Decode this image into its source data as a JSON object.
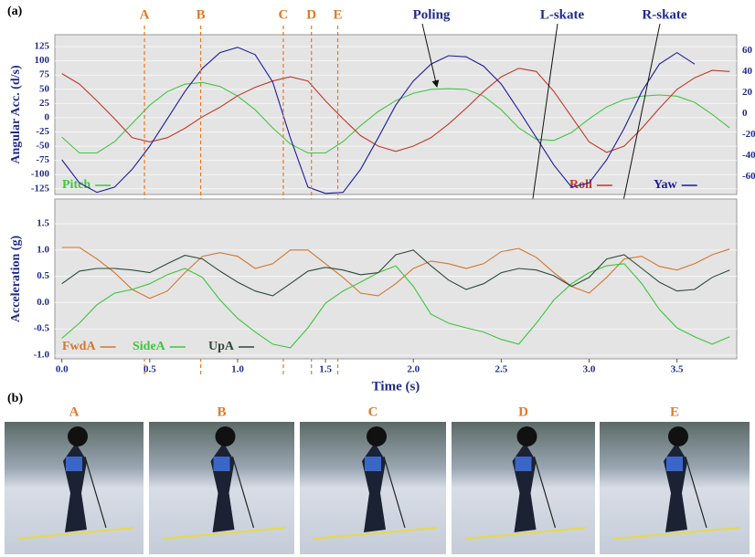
{
  "figure_label": "(a)",
  "chart_data": [
    {
      "type": "line",
      "ylabel": "Angular Acc. (d/s)",
      "xlim": [
        -0.04,
        3.84
      ],
      "ylim": [
        -135,
        146
      ],
      "yticks": [
        125,
        100,
        75,
        50,
        25,
        0,
        -25,
        -50,
        -75,
        -100,
        -125
      ],
      "y2lim": [
        -77,
        75
      ],
      "y2ticks": [
        60,
        40,
        20,
        0,
        -20,
        -40,
        -60
      ],
      "grid": true,
      "x": [
        0,
        0.1,
        0.2,
        0.3,
        0.4,
        0.5,
        0.6,
        0.7,
        0.8,
        0.9,
        1,
        1.1,
        1.2,
        1.3,
        1.4,
        1.5,
        1.6,
        1.7,
        1.8,
        1.9,
        2,
        2.1,
        2.2,
        2.3,
        2.4,
        2.5,
        2.6,
        2.7,
        2.8,
        2.9,
        3,
        3.1,
        3.2,
        3.3,
        3.4,
        3.5,
        3.6,
        3.7,
        3.8
      ],
      "series": [
        {
          "name": "Pitch",
          "color": "#45c445",
          "values": [
            -34,
            -62,
            -62,
            -42,
            -10,
            22,
            46,
            59,
            62,
            55,
            38,
            14,
            -18,
            -46,
            -62,
            -62,
            -42,
            -14,
            11,
            30,
            43,
            50,
            51,
            50,
            38,
            14,
            -18,
            -38,
            -40,
            -26,
            -2,
            19,
            32,
            38,
            40,
            38,
            27,
            6,
            -18
          ]
        },
        {
          "name": "Roll",
          "color": "#c0392b",
          "axis": "y2",
          "values": [
            38,
            28,
            12,
            -5,
            -23,
            -27,
            -23,
            -14,
            -3,
            6,
            17,
            25,
            31,
            35,
            31,
            12,
            -5,
            -21,
            -31,
            -36,
            -31,
            -23,
            -10,
            5,
            21,
            35,
            43,
            40,
            21,
            -3,
            -27,
            -37,
            -31,
            -14,
            5,
            23,
            34,
            41,
            40
          ]
        },
        {
          "name": "Yaw",
          "color": "#1c1c9e",
          "axis": "y2",
          "values": [
            -44,
            -66,
            -75,
            -70,
            -53,
            -31,
            -5,
            21,
            43,
            58,
            63,
            56,
            30,
            -23,
            -70,
            -76,
            -75,
            -53,
            -23,
            8,
            31,
            47,
            55,
            54,
            45,
            28,
            3,
            -23,
            -49,
            -70,
            -66,
            -44,
            -14,
            21,
            47,
            58,
            47,
            null,
            null
          ]
        }
      ],
      "events": [
        {
          "label": "A",
          "x": 0.47
        },
        {
          "label": "B",
          "x": 0.79
        },
        {
          "label": "C",
          "x": 1.26
        },
        {
          "label": "D",
          "x": 1.42
        },
        {
          "label": "E",
          "x": 1.57
        }
      ],
      "annotations": [
        "Poling",
        "L-skate",
        "R-skate"
      ]
    },
    {
      "type": "line",
      "ylabel": "Acceleration (g)",
      "xlabel": "Time (s)",
      "xlim": [
        -0.04,
        3.84
      ],
      "ylim": [
        -1.07,
        1.97
      ],
      "yticks": [
        1.5,
        {
          "value": 1,
          "label": "1.0"
        },
        0.5,
        {
          "value": 0,
          "label": "0.0"
        },
        -0.5,
        {
          "value": -1,
          "label": "-1.0"
        }
      ],
      "xticks": [
        {
          "value": 0,
          "label": "0.0"
        },
        0.5,
        {
          "value": 1,
          "label": "1.0"
        },
        1.5,
        {
          "value": 2,
          "label": "2.0"
        },
        2.5,
        {
          "value": 3,
          "label": "3.0"
        },
        3.5
      ],
      "grid": true,
      "x": [
        0,
        0.1,
        0.2,
        0.3,
        0.4,
        0.5,
        0.6,
        0.7,
        0.8,
        0.9,
        1,
        1.1,
        1.2,
        1.3,
        1.4,
        1.5,
        1.6,
        1.7,
        1.8,
        1.9,
        2,
        2.1,
        2.2,
        2.3,
        2.4,
        2.5,
        2.6,
        2.7,
        2.8,
        2.9,
        3,
        3.1,
        3.2,
        3.3,
        3.4,
        3.5,
        3.6,
        3.7,
        3.8
      ],
      "series": [
        {
          "name": "FwdA",
          "color": "#d2772e",
          "values": [
            1.05,
            1.05,
            0.83,
            0.57,
            0.25,
            0.08,
            0.22,
            0.57,
            0.88,
            0.95,
            0.88,
            0.65,
            0.74,
            1.0,
            1.0,
            0.74,
            0.48,
            0.18,
            0.13,
            0.36,
            0.65,
            0.79,
            0.74,
            0.65,
            0.74,
            0.97,
            1.03,
            0.86,
            0.57,
            0.31,
            0.18,
            0.48,
            0.83,
            0.88,
            0.69,
            0.62,
            0.74,
            0.91,
            1.02
          ]
        },
        {
          "name": "SideA",
          "color": "#3ec43e",
          "values": [
            -0.68,
            -0.39,
            -0.04,
            0.18,
            0.25,
            0.36,
            0.53,
            0.65,
            0.48,
            0.05,
            -0.3,
            -0.56,
            -0.79,
            -0.86,
            -0.48,
            -0.01,
            0.22,
            0.39,
            0.57,
            0.7,
            0.31,
            -0.22,
            -0.39,
            -0.48,
            -0.56,
            -0.7,
            -0.79,
            -0.39,
            0.05,
            0.36,
            0.57,
            0.7,
            0.74,
            0.36,
            -0.13,
            -0.48,
            -0.65,
            -0.79,
            -0.65
          ]
        },
        {
          "name": "UpA",
          "color": "#2d4a3a",
          "values": [
            0.36,
            0.6,
            0.65,
            0.65,
            0.62,
            0.57,
            0.74,
            0.9,
            0.83,
            0.6,
            0.39,
            0.22,
            0.13,
            0.36,
            0.6,
            0.67,
            0.62,
            0.53,
            0.57,
            0.91,
            1.0,
            0.7,
            0.43,
            0.25,
            0.36,
            0.57,
            0.65,
            0.62,
            0.51,
            0.31,
            0.48,
            0.83,
            0.91,
            0.65,
            0.39,
            0.22,
            0.25,
            0.48,
            0.62
          ]
        }
      ]
    }
  ],
  "panel_b": {
    "label": "(b)",
    "photos": [
      "A",
      "B",
      "C",
      "D",
      "E"
    ]
  }
}
